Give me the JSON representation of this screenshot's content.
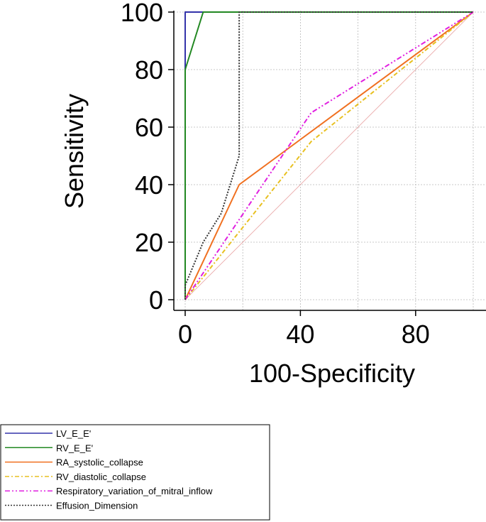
{
  "chart_data": {
    "type": "line",
    "xlabel": "100-Specificity",
    "ylabel": "Sensitivity",
    "xlim": [
      0,
      100
    ],
    "ylim": [
      0,
      100
    ],
    "x_ticks": [
      0,
      40,
      80
    ],
    "y_ticks": [
      0,
      20,
      40,
      60,
      80,
      100
    ],
    "grid": true,
    "legend_position": "bottom-left",
    "reference_line": {
      "x": [
        0,
        100
      ],
      "y": [
        0,
        100
      ],
      "color": "#e8a0a0"
    },
    "series": [
      {
        "name": "LV_E_E'",
        "color": "#3333aa",
        "dash": "solid",
        "x": [
          0,
          0,
          0,
          100
        ],
        "y": [
          0,
          80,
          100,
          100
        ]
      },
      {
        "name": "RV_E_E'",
        "color": "#228822",
        "dash": "solid",
        "x": [
          0,
          0,
          6.25,
          100
        ],
        "y": [
          0,
          80,
          100,
          100
        ]
      },
      {
        "name": "RA_systolic_collapse",
        "color": "#f07020",
        "dash": "solid",
        "x": [
          0,
          18.75,
          100
        ],
        "y": [
          0,
          40,
          100
        ]
      },
      {
        "name": "RV_diastolic_collapse",
        "color": "#e8c020",
        "dash": "dashdot",
        "x": [
          0,
          43.75,
          100
        ],
        "y": [
          0,
          55,
          100
        ]
      },
      {
        "name": "Respiratory_variation_of_mitral_inflow",
        "color": "#e020e0",
        "dash": "dashdotdot",
        "x": [
          0,
          43.75,
          100
        ],
        "y": [
          0,
          65,
          100
        ]
      },
      {
        "name": "Effusion_Dimension",
        "color": "#333333",
        "dash": "dotted",
        "x": [
          0,
          0,
          6.25,
          12.5,
          18.75,
          18.75,
          100
        ],
        "y": [
          0,
          5,
          20,
          30,
          50,
          100,
          100
        ]
      }
    ]
  }
}
